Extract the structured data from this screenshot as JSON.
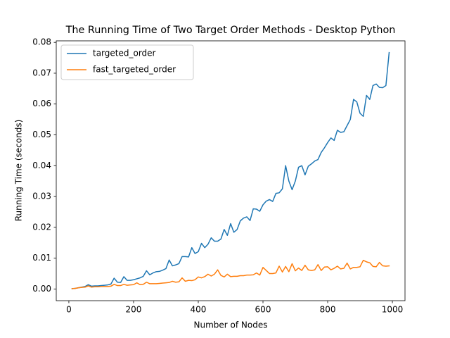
{
  "chart_data": {
    "type": "line",
    "title": "The Running Time of Two Target Order Methods - Desktop Python",
    "x_label": "Number of Nodes",
    "y_label": "Running Time (seconds)",
    "x": [
      10,
      20,
      30,
      40,
      50,
      60,
      70,
      80,
      90,
      100,
      110,
      120,
      130,
      140,
      150,
      160,
      170,
      180,
      190,
      200,
      210,
      220,
      230,
      240,
      250,
      260,
      270,
      280,
      290,
      300,
      310,
      320,
      330,
      340,
      350,
      360,
      370,
      380,
      390,
      400,
      410,
      420,
      430,
      440,
      450,
      460,
      470,
      480,
      490,
      500,
      510,
      520,
      530,
      540,
      550,
      560,
      570,
      580,
      590,
      600,
      610,
      620,
      630,
      640,
      650,
      660,
      670,
      680,
      690,
      700,
      710,
      720,
      730,
      740,
      750,
      760,
      770,
      780,
      790,
      800,
      810,
      820,
      830,
      840,
      850,
      860,
      870,
      880,
      890,
      900,
      910,
      920,
      930,
      940,
      950,
      960,
      970,
      980,
      990
    ],
    "series": [
      {
        "name": "targeted_order",
        "color": "#1f77b4",
        "values": [
          0.0001,
          0.0002,
          0.0004,
          0.0006,
          0.0008,
          0.0014,
          0.0009,
          0.001,
          0.001,
          0.0011,
          0.0012,
          0.0013,
          0.0016,
          0.0035,
          0.0022,
          0.0021,
          0.004,
          0.0028,
          0.0028,
          0.003,
          0.0033,
          0.0036,
          0.0041,
          0.0059,
          0.0046,
          0.0052,
          0.0056,
          0.0057,
          0.0061,
          0.0066,
          0.0094,
          0.0075,
          0.0078,
          0.0082,
          0.0105,
          0.0105,
          0.0104,
          0.0134,
          0.0115,
          0.0121,
          0.0148,
          0.0134,
          0.0145,
          0.0166,
          0.0155,
          0.0155,
          0.0162,
          0.0193,
          0.0174,
          0.0212,
          0.0184,
          0.0193,
          0.0221,
          0.023,
          0.0234,
          0.0222,
          0.026,
          0.0259,
          0.0252,
          0.0273,
          0.0285,
          0.029,
          0.0284,
          0.031,
          0.0312,
          0.0325,
          0.04,
          0.035,
          0.0322,
          0.035,
          0.0395,
          0.04,
          0.037,
          0.0398,
          0.0406,
          0.0415,
          0.042,
          0.0443,
          0.0458,
          0.0475,
          0.049,
          0.0482,
          0.0515,
          0.0508,
          0.051,
          0.053,
          0.055,
          0.0615,
          0.0607,
          0.057,
          0.056,
          0.0628,
          0.0615,
          0.066,
          0.0665,
          0.0654,
          0.0653,
          0.066,
          0.0767
        ]
      },
      {
        "name": "fast_targeted_order",
        "color": "#ff7f0e",
        "values": [
          0.0001,
          0.0002,
          0.0004,
          0.0005,
          0.0006,
          0.001,
          0.0006,
          0.0007,
          0.0007,
          0.0008,
          0.0008,
          0.0008,
          0.0009,
          0.0015,
          0.0011,
          0.0011,
          0.0015,
          0.0012,
          0.0013,
          0.0014,
          0.002,
          0.0014,
          0.0015,
          0.0022,
          0.0017,
          0.0017,
          0.0017,
          0.0018,
          0.0019,
          0.002,
          0.0021,
          0.0025,
          0.0022,
          0.0023,
          0.0036,
          0.0025,
          0.0028,
          0.0027,
          0.003,
          0.0039,
          0.0036,
          0.004,
          0.0048,
          0.0042,
          0.0048,
          0.0062,
          0.0044,
          0.0039,
          0.0048,
          0.004,
          0.0041,
          0.0041,
          0.0043,
          0.0043,
          0.0045,
          0.0045,
          0.0046,
          0.0052,
          0.0045,
          0.007,
          0.006,
          0.005,
          0.005,
          0.0052,
          0.0074,
          0.0055,
          0.0073,
          0.0056,
          0.0082,
          0.0059,
          0.0068,
          0.006,
          0.0077,
          0.0062,
          0.006,
          0.0062,
          0.0079,
          0.006,
          0.0071,
          0.0072,
          0.0062,
          0.0067,
          0.0074,
          0.0065,
          0.0067,
          0.0084,
          0.0065,
          0.007,
          0.007,
          0.0072,
          0.0093,
          0.0088,
          0.0085,
          0.0073,
          0.0072,
          0.0086,
          0.0075,
          0.0074,
          0.0075
        ]
      }
    ],
    "xlim": [
      -39,
      1039
    ],
    "ylim": [
      -0.0038,
      0.0805
    ],
    "xticks": [
      0,
      200,
      400,
      600,
      800,
      1000
    ],
    "yticks": [
      {
        "value": 0,
        "label": "0.00"
      },
      {
        "value": 0.01,
        "label": "0.01"
      },
      {
        "value": 0.02,
        "label": "0.02"
      },
      {
        "value": 0.03,
        "label": "0.03"
      },
      {
        "value": 0.04,
        "label": "0.04"
      },
      {
        "value": 0.05,
        "label": "0.05"
      },
      {
        "value": 0.06,
        "label": "0.06"
      },
      {
        "value": 0.07,
        "label": "0.07"
      },
      {
        "value": 0.08,
        "label": "0.08"
      }
    ],
    "legend": "upper left",
    "grid": false
  }
}
